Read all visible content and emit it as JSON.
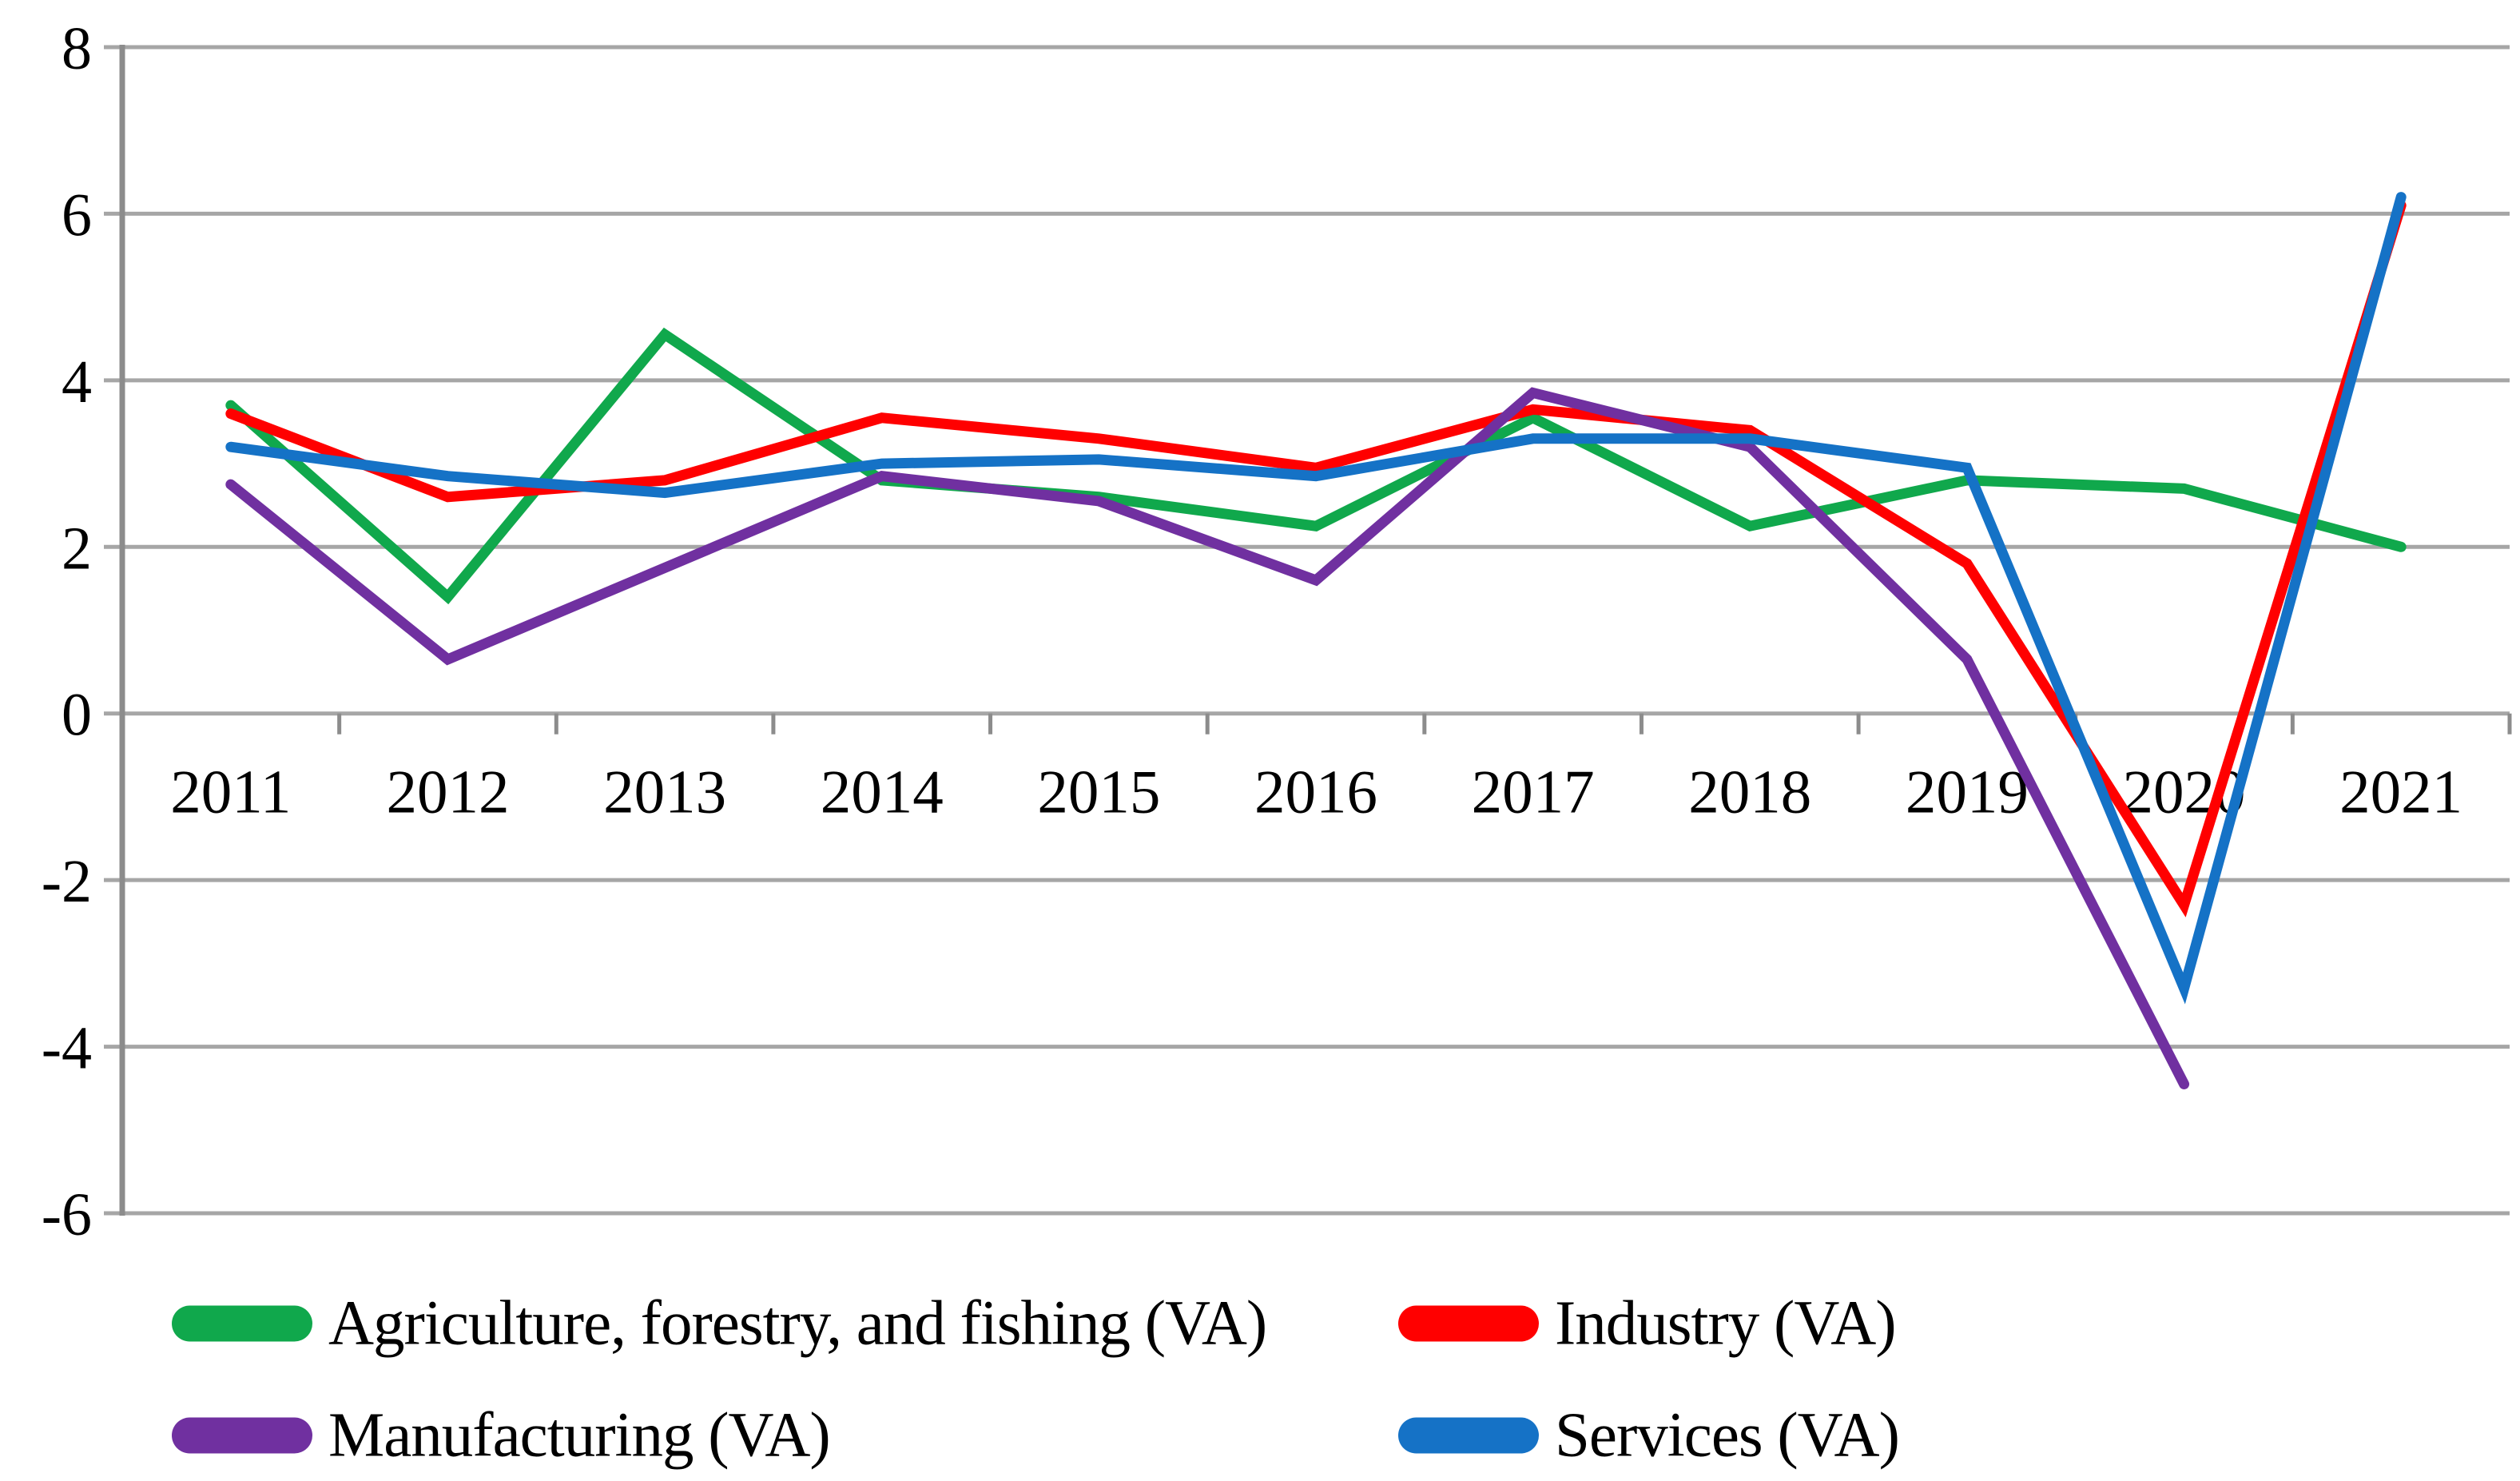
{
  "chart_data": {
    "type": "line",
    "title": "",
    "xlabel": "",
    "ylabel": "",
    "categories": [
      "2011",
      "2012",
      "2013",
      "2014",
      "2015",
      "2016",
      "2017",
      "2018",
      "2019",
      "2020",
      "2021"
    ],
    "series": [
      {
        "name": "Agriculture, forestry, and fishing (VA)",
        "color": "#10A84C",
        "values": [
          3.7,
          1.4,
          4.55,
          2.8,
          2.6,
          2.25,
          3.55,
          2.25,
          2.8,
          2.7,
          2.0
        ]
      },
      {
        "name": "Industry (VA)",
        "color": "#FF0000",
        "values": [
          3.6,
          2.6,
          2.8,
          3.55,
          3.3,
          2.95,
          3.65,
          3.4,
          1.8,
          -2.3,
          6.1
        ]
      },
      {
        "name": "Manufacturing (VA)",
        "color": "#7030A0",
        "values": [
          2.75,
          0.65,
          1.75,
          2.85,
          2.55,
          1.6,
          3.85,
          3.2,
          0.65,
          -4.45,
          null
        ]
      },
      {
        "name": "Services (VA)",
        "color": "#1572C6",
        "values": [
          3.2,
          2.85,
          2.65,
          3.0,
          3.05,
          2.85,
          3.3,
          3.3,
          2.95,
          -3.3,
          6.2
        ]
      }
    ],
    "ylim": [
      -6,
      8
    ],
    "y_ticks": [
      8,
      6,
      4,
      2,
      0,
      -2,
      -4,
      -6
    ],
    "grid": true,
    "gridline_color": "#A6A6A6",
    "axis_color": "#8C8C8C",
    "tick_label_color": "#000000",
    "legend_position": "bottom"
  }
}
